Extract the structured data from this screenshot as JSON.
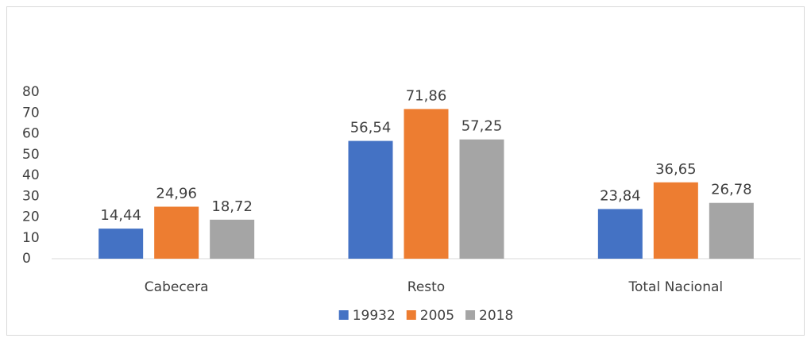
{
  "chart_data": {
    "type": "bar",
    "categories": [
      "Cabecera",
      "Resto",
      "Total Nacional"
    ],
    "series": [
      {
        "name": "19932",
        "color": "#4472c4",
        "values": [
          14.44,
          56.54,
          23.84
        ],
        "value_labels": [
          "14,44",
          "56,54",
          "23,84"
        ]
      },
      {
        "name": "2005",
        "color": "#ed7d31",
        "values": [
          24.96,
          71.86,
          36.65
        ],
        "value_labels": [
          "24,96",
          "71,86",
          "36,65"
        ]
      },
      {
        "name": "2018",
        "color": "#a5a5a5",
        "values": [
          18.72,
          57.25,
          26.78
        ],
        "value_labels": [
          "18,72",
          "57,25",
          "26,78"
        ]
      }
    ],
    "ylim": [
      0,
      80
    ],
    "yticks": [
      0,
      10,
      20,
      30,
      40,
      50,
      60,
      70,
      80
    ],
    "grid": false,
    "legend": "bottom"
  }
}
